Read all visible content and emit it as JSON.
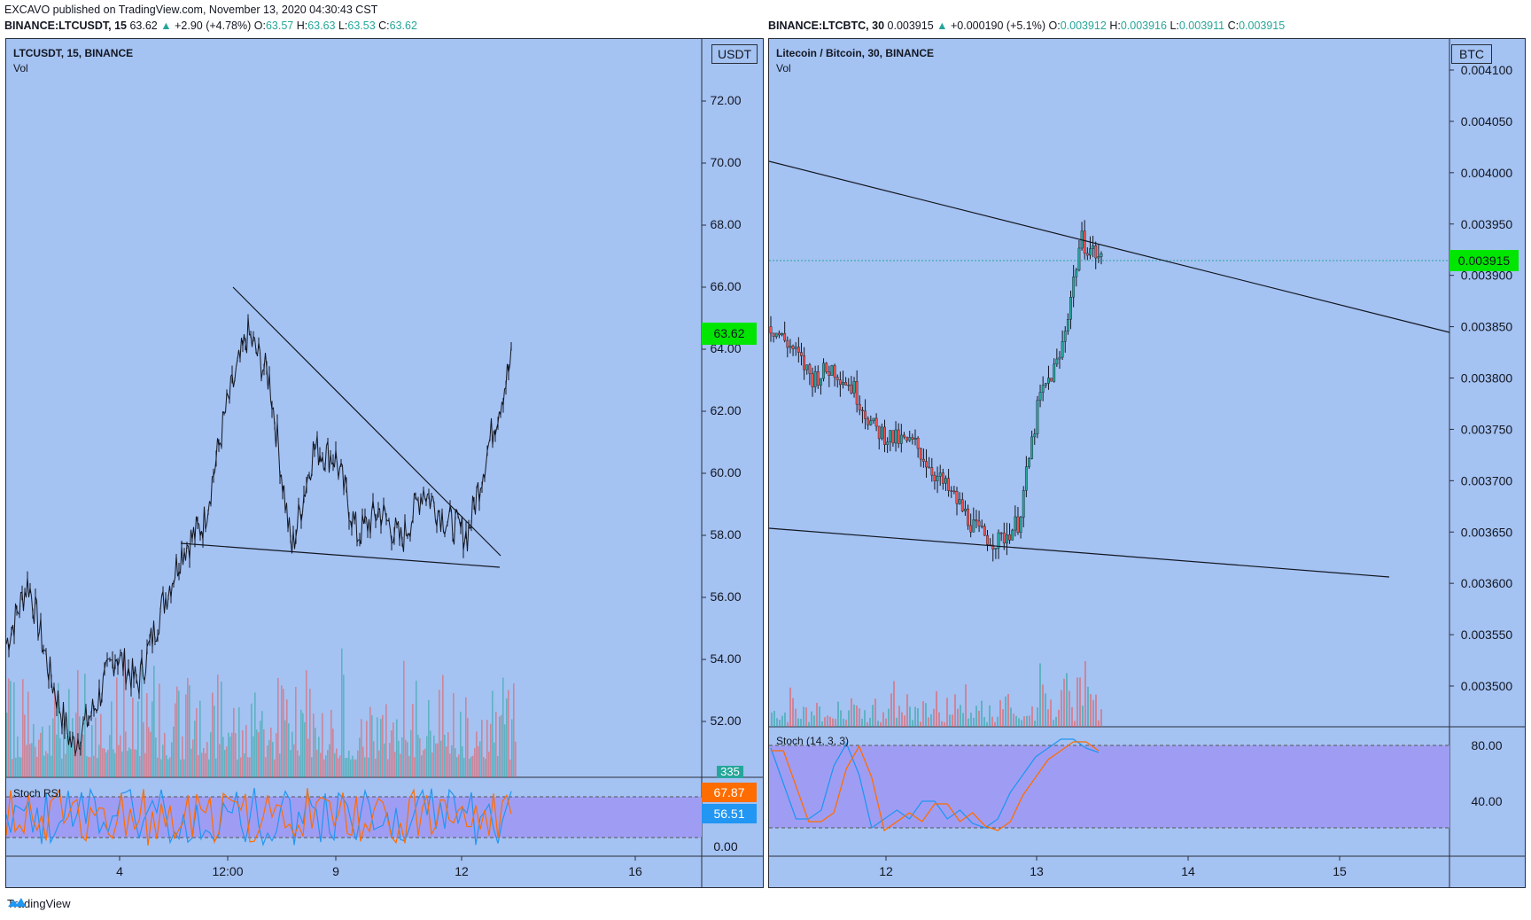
{
  "header": {
    "publisher": "EXCAVO published on TradingView.com, November 13, 2020 04:30:43 CST",
    "left_ticker": "BINANCE:LTCUSDT, 15",
    "left_last": "63.62",
    "left_change": "+2.90 (+4.78%)",
    "left_ohlc": {
      "o": "63.57",
      "h": "63.63",
      "l": "63.53",
      "c": "63.62"
    },
    "right_ticker": "BINANCE:LTCBTC, 30",
    "right_last": "0.003915",
    "right_change": "+0.000190 (+5.1%)",
    "right_ohlc": {
      "o": "0.003912",
      "h": "0.003916",
      "l": "0.003911",
      "c": "0.003915"
    }
  },
  "left_panel": {
    "title": "LTCUSDT, 15, BINANCE",
    "vol_label": "Vol",
    "currency": "USDT",
    "indicator_label": "Stoch RSI",
    "last_price": "63.62",
    "vol_badge": "335",
    "k_badge": "67.87",
    "d_badge": "56.51"
  },
  "right_panel": {
    "title": "Litecoin / Bitcoin, 30, BINANCE",
    "vol_label": "Vol",
    "currency": "BTC",
    "indicator_label": "Stoch (14, 3, 3)",
    "last_price": "0.003915"
  },
  "footer": {
    "brand": "TradingView"
  },
  "colors": {
    "bg": "#a4c2f2",
    "up": "#26a69a",
    "down": "#ef5350",
    "price_badge": "#00e600",
    "stoch_band": "#9f9df3",
    "k_line": "#2196f3",
    "d_line": "#ff6d00"
  },
  "chart_data": [
    {
      "type": "line",
      "title": "LTCUSDT, 15, BINANCE",
      "x_ticks": [
        "4",
        "12:00",
        "9",
        "12",
        "16"
      ],
      "y_ticks": [
        "52.00",
        "54.00",
        "56.00",
        "58.00",
        "60.00",
        "62.00",
        "64.00",
        "66.00",
        "68.00",
        "70.00",
        "72.00"
      ],
      "ylim": [
        50.5,
        72
      ],
      "series": [
        {
          "values": [
            54.5,
            56.5,
            53.5,
            51.2,
            52.4,
            54.2,
            53.2,
            55.5,
            57.5,
            58.4,
            62.0,
            64.5,
            63.0,
            57.5,
            60.8,
            60.5,
            58.0,
            58.8,
            57.8,
            59.5,
            58.5,
            58.0,
            61.0,
            63.62
          ]
        }
      ],
      "indicator_ticks": [
        "0.00"
      ]
    },
    {
      "type": "line",
      "title": "Litecoin / Bitcoin, 30, BINANCE",
      "x_ticks": [
        "12",
        "13",
        "14",
        "15"
      ],
      "y_ticks": [
        "0.003500",
        "0.003550",
        "0.003600",
        "0.003650",
        "0.003700",
        "0.003750",
        "0.003800",
        "0.003850",
        "0.003900",
        "0.003950",
        "0.004000",
        "0.004050",
        "0.004100"
      ],
      "ylim": [
        0.00347,
        0.00411
      ],
      "series": [
        {
          "values": [
            0.00385,
            0.00383,
            0.0038,
            0.00381,
            0.00379,
            0.00375,
            0.00374,
            0.003735,
            0.003705,
            0.00368,
            0.00365,
            0.00364,
            0.00366,
            0.00378,
            0.00382,
            0.003935,
            0.003915
          ]
        }
      ],
      "indicator_ticks": [
        "40.00",
        "80.00"
      ]
    }
  ]
}
